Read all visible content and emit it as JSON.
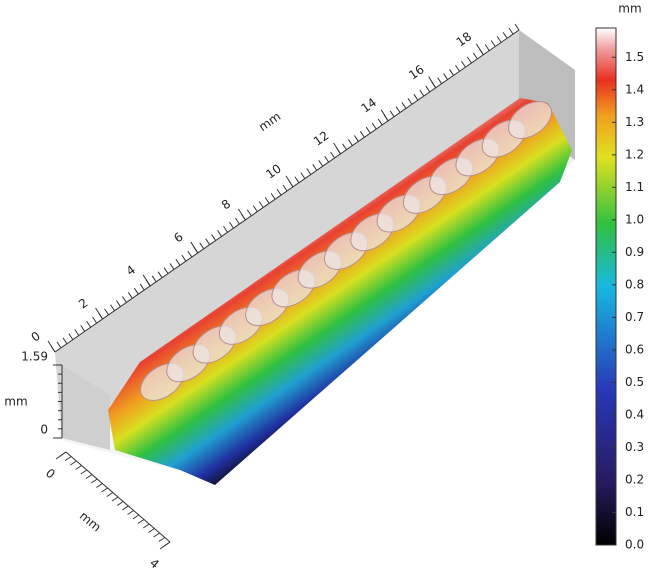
{
  "chart_data": {
    "type": "surface",
    "x_axis": {
      "label": "mm",
      "xlim": [
        0,
        19.5
      ],
      "xticks": [
        0,
        2,
        4,
        6,
        8,
        10,
        12,
        14,
        16,
        18
      ]
    },
    "y_axis": {
      "label": "mm",
      "ylim": [
        0,
        4
      ],
      "yticks": [
        0,
        4
      ]
    },
    "z_axis": {
      "label": "mm",
      "zlim": [
        0,
        1.59
      ],
      "zticks": [
        0,
        1.59
      ]
    },
    "colorbar": {
      "label": "mm",
      "clim": [
        0,
        1.59
      ],
      "ticks": [
        {
          "value": 0,
          "label": "0.0"
        },
        0.1,
        0.2,
        0.3,
        0.4,
        0.5,
        0.6,
        0.7,
        0.8,
        0.9,
        {
          "value": 1,
          "label": "1.0"
        },
        1.1,
        1.2,
        1.3,
        1.4,
        1.5
      ]
    }
  }
}
